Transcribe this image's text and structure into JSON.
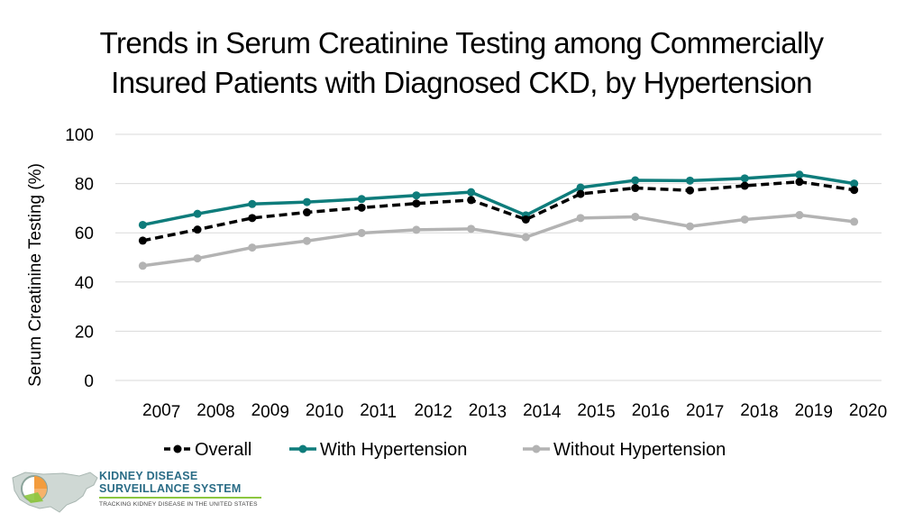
{
  "title": {
    "line1": "Trends in Serum Creatinine Testing among Commercially",
    "line2": "Insured Patients with Diagnosed CKD, by Hypertension"
  },
  "logo": {
    "line1": "KIDNEY DISEASE",
    "line2": "SURVEILLANCE SYSTEM",
    "tagline": "TRACKING KIDNEY DISEASE IN THE UNITED STATES"
  },
  "chart_data": {
    "type": "line",
    "title": "Trends in Serum Creatinine Testing among Commercially Insured Patients with Diagnosed CKD, by Hypertension",
    "xlabel": "",
    "ylabel": "Serum Creatinine Testing (%)",
    "ylim": [
      0,
      100
    ],
    "yticks": [
      0,
      20,
      40,
      60,
      80,
      100
    ],
    "grid": true,
    "legend_position": "bottom",
    "x_tick_labels": [
      "2007",
      "2008",
      "2009",
      "2010",
      "2011",
      "2012",
      "2013",
      "2014",
      "2015",
      "2016",
      "2017",
      "2018",
      "2019",
      "2020"
    ],
    "categories": [
      "2007",
      "2008",
      "2009",
      "2010",
      "2011",
      "2012",
      "2013",
      "2014",
      "2015",
      "2016",
      "2017",
      "2018",
      "2019",
      "2020"
    ],
    "series": [
      {
        "name": "Overall",
        "color": "#000000",
        "dashed": true,
        "values": [
          56.8,
          61.3,
          66.0,
          68.3,
          70.2,
          71.9,
          73.3,
          65.4,
          75.8,
          78.2,
          77.2,
          79.1,
          80.7,
          77.4
        ]
      },
      {
        "name": "With Hypertension",
        "color": "#0e7c7b",
        "dashed": false,
        "values": [
          63.2,
          67.7,
          71.7,
          72.5,
          73.7,
          75.2,
          76.5,
          67.1,
          78.4,
          81.3,
          81.2,
          82.1,
          83.6,
          80.0
        ]
      },
      {
        "name": "Without Hypertension",
        "color": "#b3b3b3",
        "dashed": false,
        "values": [
          46.6,
          49.6,
          54.0,
          56.7,
          59.9,
          61.2,
          61.6,
          58.2,
          66.0,
          66.5,
          62.6,
          65.4,
          67.2,
          64.5
        ]
      }
    ]
  }
}
